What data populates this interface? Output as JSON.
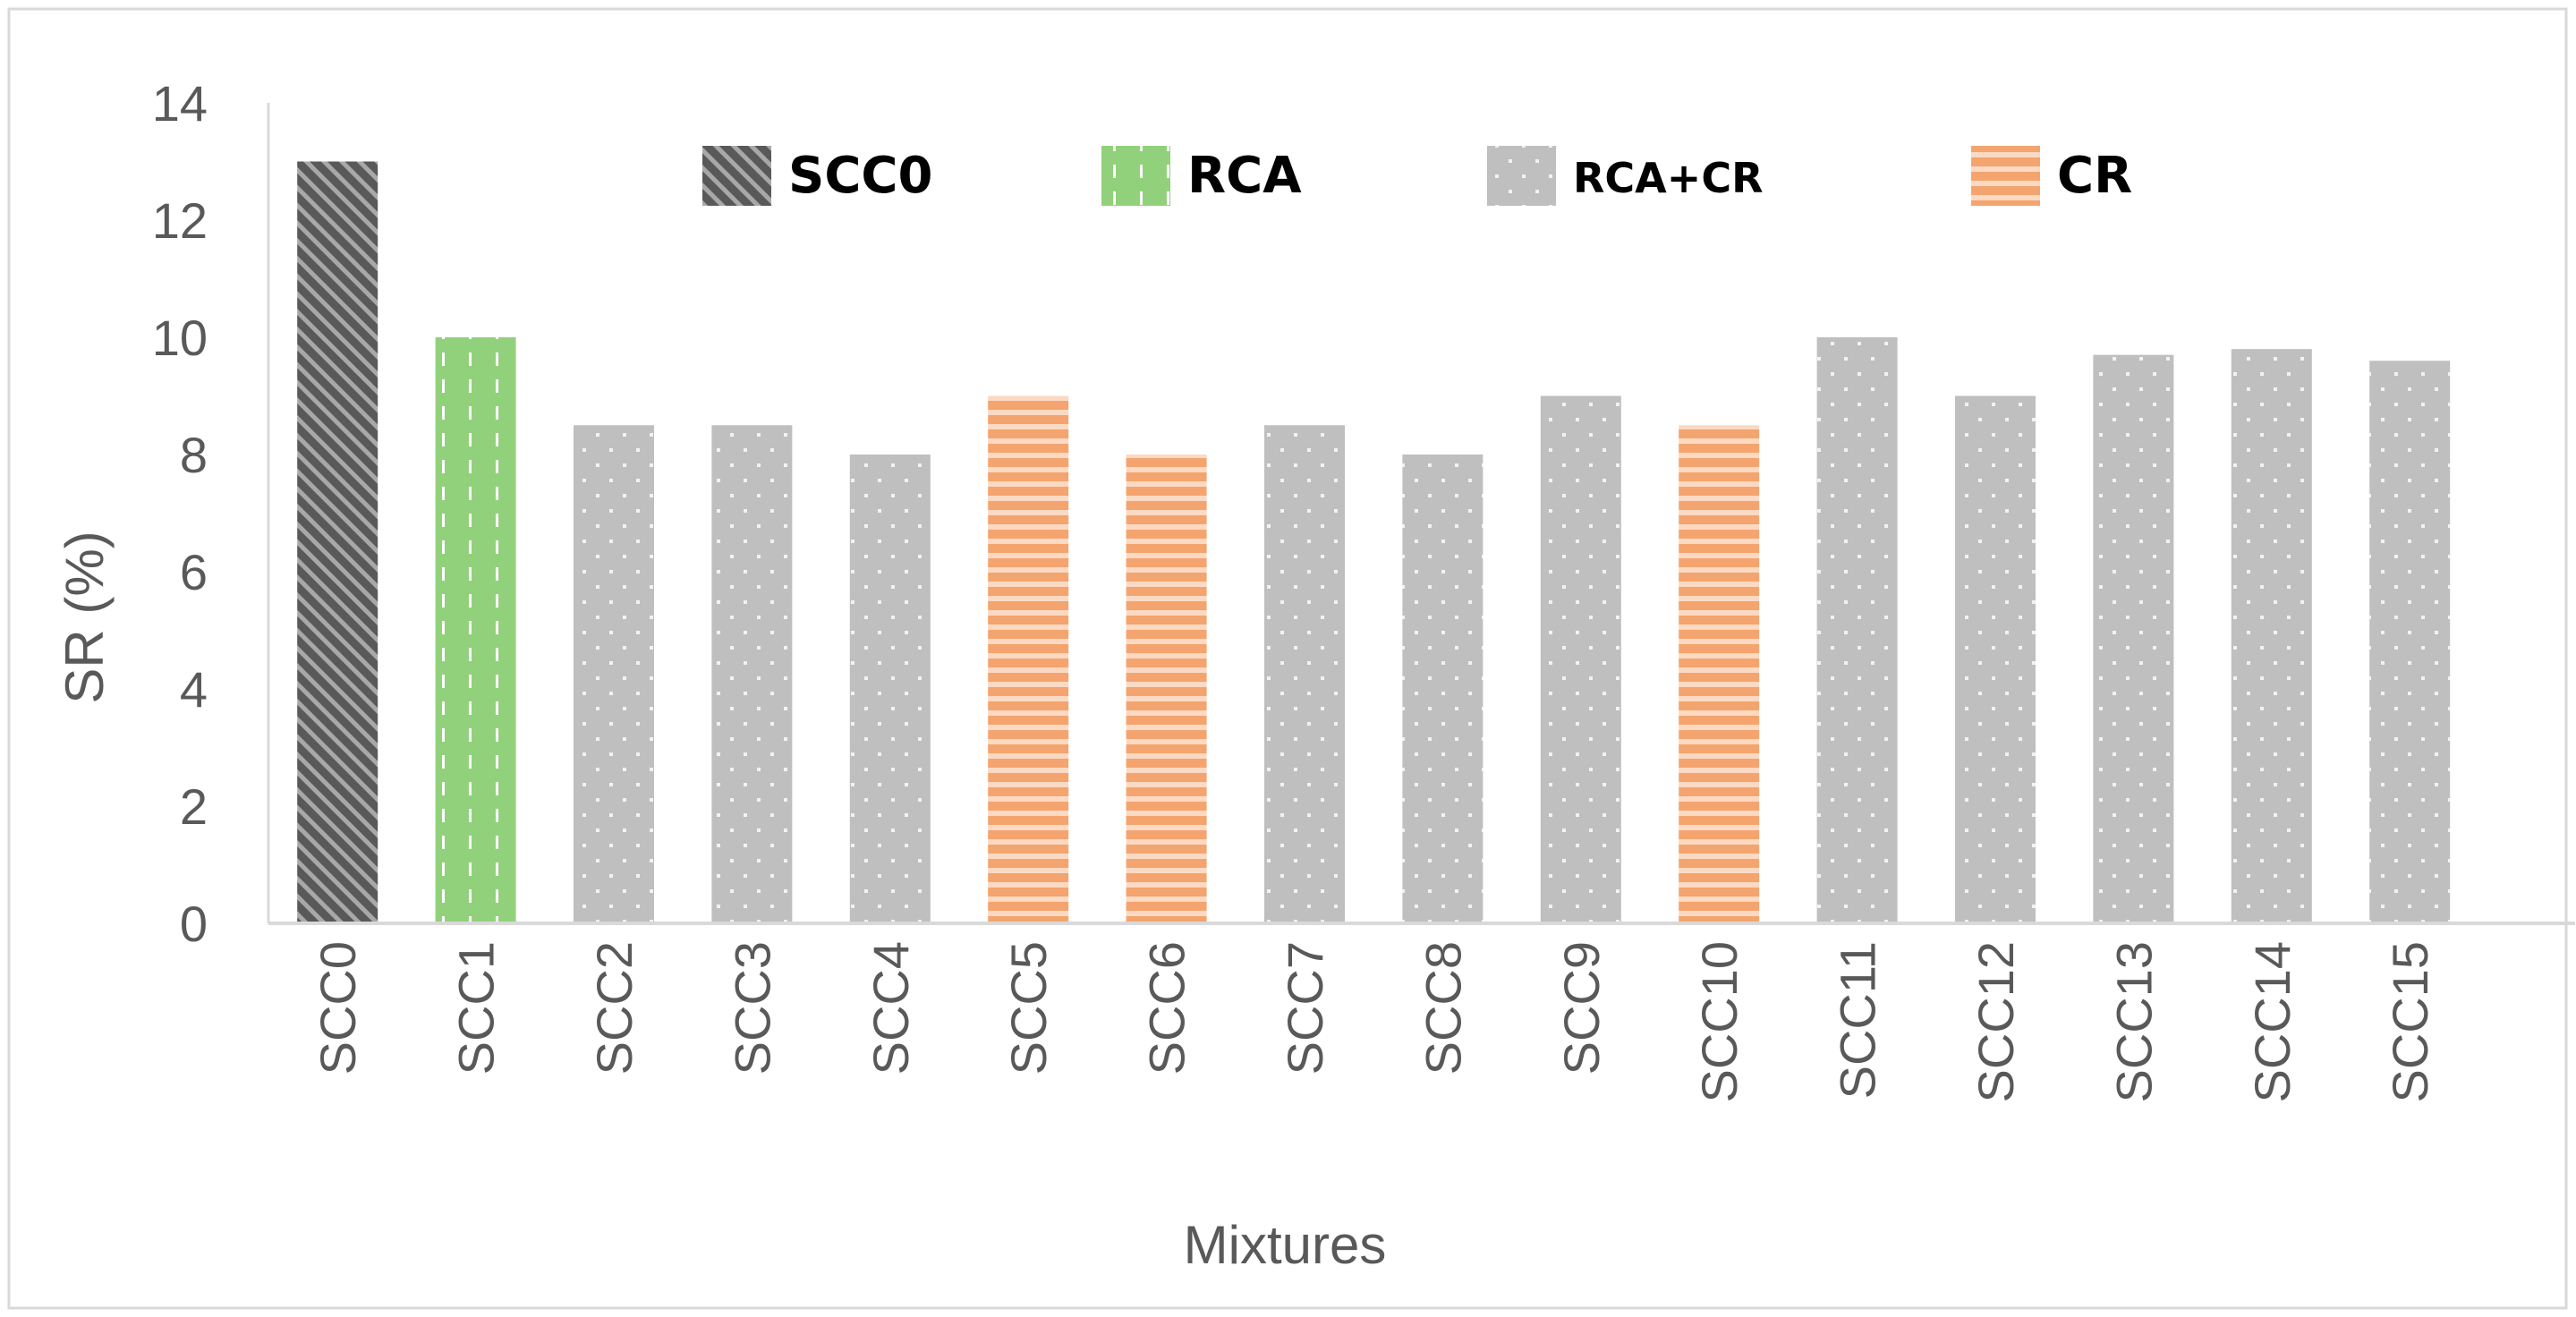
{
  "chart_data": {
    "type": "bar",
    "xlabel": "Mixtures",
    "ylabel": "SR (%)",
    "ylim": [
      0,
      14
    ],
    "yticks": [
      0,
      2,
      4,
      6,
      8,
      10,
      12,
      14
    ],
    "grid": false,
    "legend_position": "top",
    "categories": [
      "SCC0",
      "SCC1",
      "SCC2",
      "SCC3",
      "SCC4",
      "SCC5",
      "SCC6",
      "SCC7",
      "SCC8",
      "SCC9",
      "SCC10",
      "SCC11",
      "SCC12",
      "SCC13",
      "SCC14",
      "SCC15"
    ],
    "values": [
      13,
      10,
      8.5,
      8.5,
      8,
      9,
      8,
      8.5,
      8,
      9,
      8.5,
      10,
      9,
      9.7,
      9.8,
      9.6
    ],
    "groups": [
      "SCC0",
      "RCA",
      "RCA+CR",
      "RCA+CR",
      "RCA+CR",
      "CR",
      "CR",
      "RCA+CR",
      "RCA+CR",
      "RCA+CR",
      "CR",
      "RCA+CR",
      "RCA+CR",
      "RCA+CR",
      "RCA+CR",
      "RCA+CR"
    ],
    "legend": [
      {
        "name": "SCC0",
        "color": "#595959",
        "pattern": "diagonal-stripes"
      },
      {
        "name": "RCA",
        "color": "#92d17b",
        "pattern": "dashes"
      },
      {
        "name": "RCA+CR",
        "color": "#bfbfbf",
        "pattern": "dots"
      },
      {
        "name": "CR",
        "color": "#f4a46e",
        "pattern": "horizontal-stripes"
      }
    ]
  }
}
